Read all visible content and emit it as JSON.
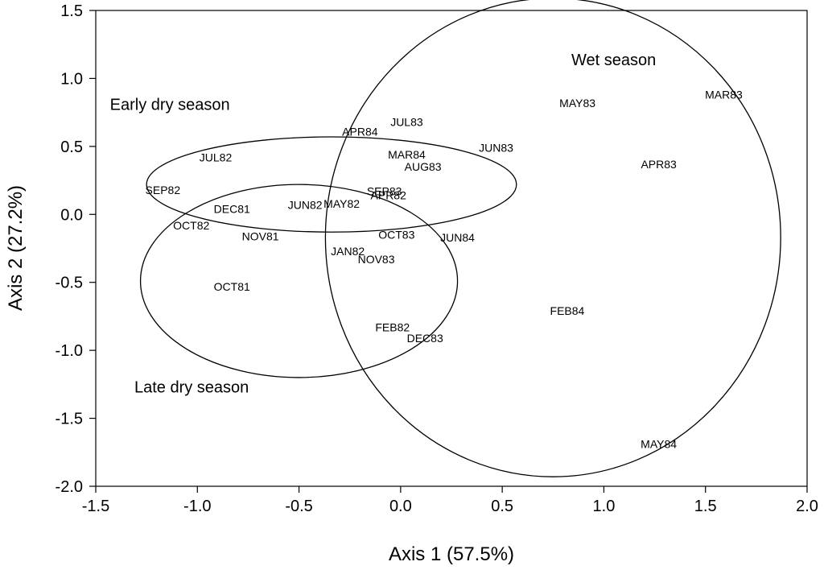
{
  "chart_data": {
    "type": "scatter",
    "title": "",
    "xlabel": "Axis 1 (57.5%)",
    "ylabel": "Axis 2 (27.2%)",
    "xlim": [
      -1.5,
      2.0
    ],
    "ylim": [
      -2.0,
      1.5
    ],
    "xticks": [
      -1.5,
      -1.0,
      -0.5,
      0.0,
      0.5,
      1.0,
      1.5,
      2.0
    ],
    "yticks": [
      -2.0,
      -1.5,
      -1.0,
      -0.5,
      0.0,
      0.5,
      1.0,
      1.5
    ],
    "xtick_labels": [
      "-1.5",
      "-1.0",
      "-0.5",
      "0.0",
      "0.5",
      "1.0",
      "1.5",
      "2.0"
    ],
    "ytick_labels": [
      "-2.0",
      "-1.5",
      "-1.0",
      "-0.5",
      "0.0",
      "0.5",
      "1.0",
      "1.5"
    ],
    "grid": false,
    "points": [
      {
        "label": "MAR83",
        "x": 1.59,
        "y": 0.88
      },
      {
        "label": "MAY83",
        "x": 0.87,
        "y": 0.82
      },
      {
        "label": "APR83",
        "x": 1.27,
        "y": 0.37
      },
      {
        "label": "JUL83",
        "x": 0.03,
        "y": 0.68
      },
      {
        "label": "APR84",
        "x": -0.2,
        "y": 0.61
      },
      {
        "label": "JUN83",
        "x": 0.47,
        "y": 0.49
      },
      {
        "label": "MAR84",
        "x": 0.03,
        "y": 0.44
      },
      {
        "label": "AUG83",
        "x": 0.11,
        "y": 0.35
      },
      {
        "label": "JUL82",
        "x": -0.91,
        "y": 0.42
      },
      {
        "label": "SEP82",
        "x": -1.17,
        "y": 0.18
      },
      {
        "label": "SEP83",
        "x": -0.08,
        "y": 0.17
      },
      {
        "label": "APR82",
        "x": -0.06,
        "y": 0.14
      },
      {
        "label": "JUN82",
        "x": -0.47,
        "y": 0.07
      },
      {
        "label": "MAY82",
        "x": -0.29,
        "y": 0.08
      },
      {
        "label": "DEC81",
        "x": -0.83,
        "y": 0.04
      },
      {
        "label": "OCT82",
        "x": -1.03,
        "y": -0.08
      },
      {
        "label": "NOV81",
        "x": -0.69,
        "y": -0.16
      },
      {
        "label": "OCT83",
        "x": -0.02,
        "y": -0.15
      },
      {
        "label": "JUN84",
        "x": 0.28,
        "y": -0.17
      },
      {
        "label": "JAN82",
        "x": -0.26,
        "y": -0.27
      },
      {
        "label": "NOV83",
        "x": -0.12,
        "y": -0.33
      },
      {
        "label": "OCT81",
        "x": -0.83,
        "y": -0.53
      },
      {
        "label": "FEB84",
        "x": 0.82,
        "y": -0.71
      },
      {
        "label": "FEB82",
        "x": -0.04,
        "y": -0.83
      },
      {
        "label": "DEC83",
        "x": 0.12,
        "y": -0.91
      },
      {
        "label": "MAY84",
        "x": 1.27,
        "y": -1.69
      }
    ],
    "ellipses": [
      {
        "name": "Early dry season",
        "cx": -0.34,
        "cy": 0.22,
        "rx": 0.91,
        "ry": 0.35
      },
      {
        "name": "Late dry season",
        "cx": -0.5,
        "cy": -0.49,
        "rx": 0.78,
        "ry": 0.71
      },
      {
        "name": "Wet season",
        "cx": 0.75,
        "cy": -0.17,
        "rx": 1.12,
        "ry": 1.76
      }
    ],
    "region_labels": [
      {
        "text": "Early dry season",
        "x": -1.43,
        "y": 0.81
      },
      {
        "text": "Late dry season",
        "x": -1.31,
        "y": -1.27
      },
      {
        "text": "Wet season",
        "x": 0.84,
        "y": 1.14
      }
    ]
  }
}
